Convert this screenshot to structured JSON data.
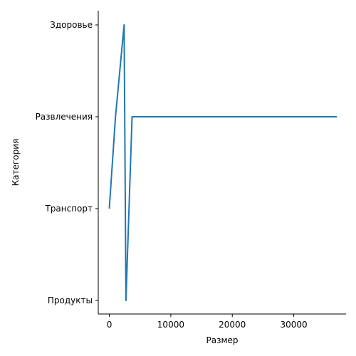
{
  "chart_data": {
    "type": "line",
    "title": "",
    "xlabel": "Размер",
    "ylabel": "Категория",
    "xlim": [
      -1800,
      38500
    ],
    "x_ticks": [
      0,
      10000,
      20000,
      30000
    ],
    "y_categories": [
      "Продукты",
      "Транспорт",
      "Развлечения",
      "Здоровье"
    ],
    "grid": false,
    "series": [
      {
        "color": "#1f77b4",
        "points": [
          {
            "x": 0,
            "y": "Транспорт"
          },
          {
            "x": 1000,
            "y": "Развлечения"
          },
          {
            "x": 2400,
            "y": "Здоровье"
          },
          {
            "x": 2700,
            "y": "Продукты"
          },
          {
            "x": 3700,
            "y": "Развлечения"
          },
          {
            "x": 37000,
            "y": "Развлечения"
          }
        ]
      }
    ]
  }
}
